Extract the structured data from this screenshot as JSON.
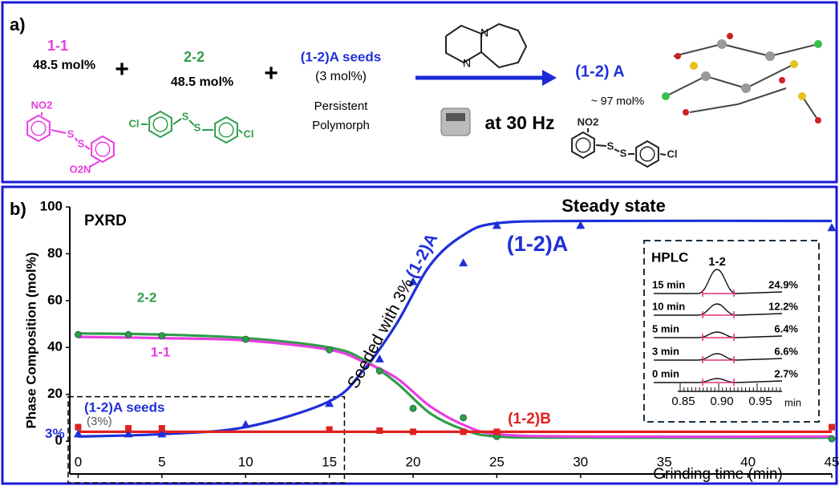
{
  "panel_a": {
    "label": "a)",
    "reactants": [
      {
        "name": "1-1",
        "amount": "48.5 mol%"
      },
      {
        "name": "2-2",
        "amount": "48.5 mol%"
      }
    ],
    "plus": [
      "+",
      "+"
    ],
    "seeds": {
      "name": "(1-2)A seeds",
      "amount": "(3 mol%)",
      "note": [
        "Persistent",
        "Polymorph"
      ]
    },
    "catalyst_atoms": [
      "N",
      "N"
    ],
    "condition": "at 30 Hz",
    "product": {
      "name": "(1-2) A",
      "amount": "~ 97 mol%"
    },
    "atoms_1_1": [
      "NO2",
      "S",
      "S",
      "O2N"
    ],
    "atoms_2_2": [
      "Cl",
      "S",
      "S",
      "Cl"
    ],
    "atoms_product": [
      "NO2",
      "S",
      "S",
      "Cl"
    ]
  },
  "chart_data": {
    "type": "line",
    "panel_label": "b)",
    "x_label": "Grinding time (min)",
    "y_label": "Phase Composition (mol%)",
    "xlim": [
      -0.5,
      45
    ],
    "xticks": [
      0,
      5,
      10,
      15,
      20,
      25,
      30,
      35,
      40,
      45
    ],
    "ylim": [
      -14,
      100
    ],
    "yticks": [
      0,
      20,
      40,
      60,
      80,
      100
    ],
    "annotations": {
      "method": "PXRD",
      "steady": "Steady state",
      "seeded": "Seeded with 3%",
      "seeds": "(1-2)A seeds",
      "seeds_pct": "(3%)",
      "start_pct": "3%"
    },
    "series": [
      {
        "name": "(1-2)A",
        "color": "#1f2fd8",
        "mode": "markers",
        "marker": "triangle",
        "x": [
          0,
          3,
          5,
          10,
          15,
          18,
          20,
          23,
          25,
          30,
          45
        ],
        "values": [
          3,
          3,
          3,
          7,
          16,
          35,
          68,
          76,
          92,
          92,
          91
        ]
      },
      {
        "color": "#1f2fd8",
        "mode": "line",
        "x": [
          0,
          5,
          10,
          15,
          17,
          19,
          21,
          23,
          25,
          30,
          45
        ],
        "values": [
          2,
          3,
          6,
          17,
          30,
          50,
          75,
          88,
          93,
          94,
          94
        ]
      },
      {
        "name": "2-2",
        "color": "#2e9e4a",
        "mode": "markers",
        "marker": "circle",
        "x": [
          0,
          3,
          5,
          10,
          15,
          18,
          20,
          23,
          25,
          45
        ],
        "values": [
          45.5,
          45.5,
          45,
          43.5,
          39,
          30,
          14,
          10,
          2,
          1
        ]
      },
      {
        "color": "#2e9e4a",
        "mode": "line",
        "x": [
          0,
          5,
          10,
          15,
          17,
          19,
          21,
          23,
          25,
          30,
          45
        ],
        "values": [
          46,
          45.5,
          44,
          40,
          35,
          25,
          12,
          5,
          2,
          1.5,
          1.5
        ]
      },
      {
        "name": "1-1",
        "color": "#e83ee0",
        "mode": "line",
        "x": [
          0,
          5,
          10,
          15,
          17,
          19,
          21,
          23,
          25,
          30,
          45
        ],
        "values": [
          44.5,
          44,
          43,
          39,
          34,
          27,
          15,
          7,
          3,
          2,
          2
        ]
      },
      {
        "name": "(1-2)B",
        "color": "#e02020",
        "mode": "markers",
        "marker": "square",
        "x": [
          0,
          3,
          5,
          15,
          18,
          20,
          23,
          25,
          45
        ],
        "values": [
          6,
          5.5,
          5.5,
          5,
          4.5,
          4,
          4,
          4,
          6
        ]
      },
      {
        "color": "#e02020",
        "mode": "line",
        "x": [
          0,
          45
        ],
        "values": [
          4,
          4
        ]
      }
    ],
    "inset": {
      "title": "HPLC",
      "peak": "1-2",
      "rows": [
        {
          "time": "15 min",
          "percent": "24.9%"
        },
        {
          "time": "10 min",
          "percent": "12.2%"
        },
        {
          "time": "5 min",
          "percent": "6.4%"
        },
        {
          "time": "3 min",
          "percent": "6.6%"
        },
        {
          "time": "0 min",
          "percent": "2.7%"
        }
      ],
      "ticks": [
        "0.85",
        "0.90",
        "0.95"
      ],
      "unit": "min"
    }
  }
}
